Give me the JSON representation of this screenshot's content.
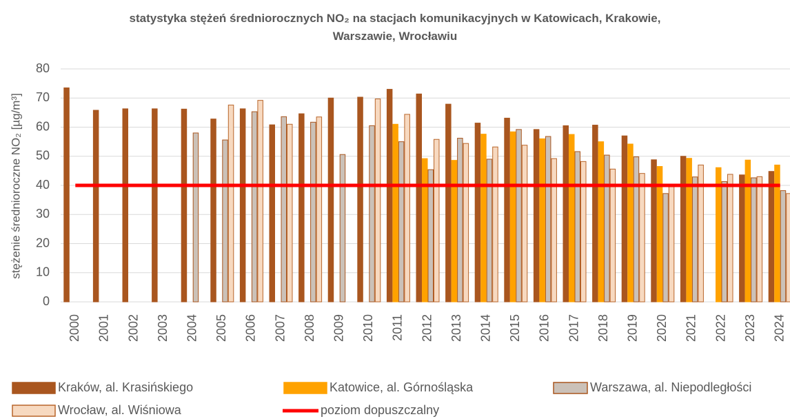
{
  "chart_data": {
    "type": "bar",
    "title": "statystyka stężeń średniorocznych NO₂ na stacjach komunikacyjnych w Katowicach, Krakowie, Warszawie, Wrocławiu",
    "y_label": "stężenie średnioroczne NO₂ [µg/m³]",
    "categories": [
      "2000",
      "2001",
      "2002",
      "2003",
      "2004",
      "2005",
      "2006",
      "2007",
      "2008",
      "2009",
      "2010",
      "2011",
      "2012",
      "2013",
      "2014",
      "2015",
      "2016",
      "2017",
      "2018",
      "2019",
      "2020",
      "2021",
      "2022",
      "2023",
      "2024"
    ],
    "series": [
      {
        "name": "Kraków, al. Krasińskiego",
        "color": "#a9561f",
        "stroke": "#a9561f",
        "values": [
          73.5,
          65.8,
          66.3,
          66.3,
          66.2,
          62.8,
          66.3,
          60.8,
          64.6,
          70,
          70.3,
          73,
          71.4,
          67.9,
          61.4,
          63.1,
          59.2,
          60.5,
          60.7,
          57,
          48.8,
          50,
          null,
          43.6,
          44.8
        ]
      },
      {
        "name": "Katowice, al. Górnośląska",
        "color": "#ffa200",
        "stroke": "#ffa200",
        "values": [
          null,
          null,
          null,
          null,
          null,
          null,
          null,
          null,
          null,
          null,
          null,
          61,
          49.2,
          48.6,
          57.6,
          58.4,
          56,
          57.5,
          55,
          54.2,
          46.5,
          49.3,
          46.1,
          48.7,
          47
        ]
      },
      {
        "name": "Warszawa, al. Niepodległości",
        "color": "#cbc1b8",
        "stroke": "#a9561f",
        "values": [
          null,
          null,
          null,
          null,
          58,
          55.6,
          65.3,
          63.6,
          61.7,
          50.6,
          60.5,
          55,
          45.4,
          56.2,
          49,
          59.2,
          56.8,
          51.6,
          50.4,
          49.8,
          37.2,
          42.9,
          41.3,
          42.6,
          38.2
        ]
      },
      {
        "name": "Wrocław, al. Wiśniowa",
        "color": "#f7d9c0",
        "stroke": "#b8652a",
        "values": [
          null,
          null,
          null,
          null,
          null,
          67.6,
          69.2,
          61,
          63.5,
          null,
          69.7,
          64.4,
          55.8,
          54.4,
          53.2,
          53.8,
          49.2,
          48.2,
          45.6,
          44.1,
          40,
          47,
          43.8,
          43,
          37.2
        ]
      },
      {
        "name": "poziom dopuszczalny",
        "color": "#ff0000",
        "kind": "line",
        "values": [
          40,
          40,
          40,
          40,
          40,
          40,
          40,
          40,
          40,
          40,
          40,
          40,
          40,
          40,
          40,
          40,
          40,
          40,
          40,
          40,
          40,
          40,
          40,
          40,
          40
        ]
      }
    ],
    "ylim": [
      0,
      80
    ],
    "yticks": [
      0,
      10,
      20,
      30,
      40,
      50,
      60,
      70,
      80
    ],
    "grid": true,
    "legend": "bottom"
  }
}
